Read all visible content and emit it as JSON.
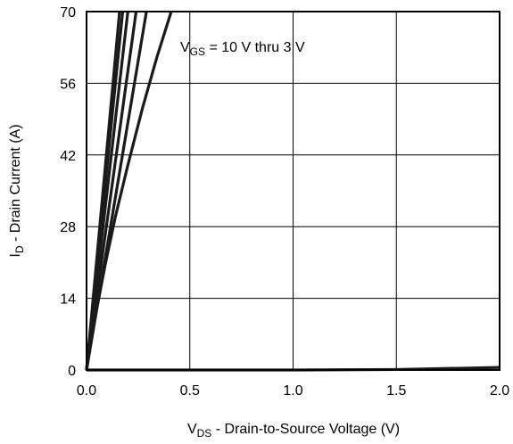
{
  "chart_data": {
    "type": "line",
    "title": "",
    "xlabel": {
      "main": "V",
      "sub": "DS",
      "rest": " - Drain-to-Source Voltage (V)"
    },
    "ylabel": {
      "main": "I",
      "sub": "D",
      "rest": " - Drain Current (A)"
    },
    "xlim": [
      0,
      2.0
    ],
    "ylim": [
      0,
      70
    ],
    "xticks": [
      0.0,
      0.5,
      1.0,
      1.5,
      2.0
    ],
    "xtick_labels": [
      "0.0",
      "0.5",
      "1.0",
      "1.5",
      "2.0"
    ],
    "yticks": [
      0,
      14,
      28,
      42,
      56,
      70
    ],
    "ytick_labels": [
      "0",
      "14",
      "28",
      "42",
      "56",
      "70"
    ],
    "grid": true,
    "annotation": {
      "main": "V",
      "sub": "GS",
      "rest": " = 10 V thru 3 V"
    },
    "line_color": "#1a1a1a",
    "series": [
      {
        "x": [
          0,
          0.16
        ],
        "y": [
          0,
          70
        ]
      },
      {
        "x": [
          0,
          0.175
        ],
        "y": [
          0,
          70
        ]
      },
      {
        "x": [
          0,
          0.2
        ],
        "y": [
          0,
          70
        ]
      },
      {
        "x": [
          0,
          0.24
        ],
        "y": [
          0,
          70
        ]
      },
      {
        "x": [
          0,
          0.29
        ],
        "y": [
          0,
          70
        ]
      },
      {
        "x": [
          0,
          0.02,
          0.05,
          0.09,
          0.14,
          0.2,
          0.27,
          0.34,
          0.41
        ],
        "y": [
          0,
          5,
          12,
          20.5,
          30,
          40,
          51,
          61,
          70
        ]
      },
      {
        "x": [
          0,
          0.5,
          1.0,
          1.5,
          2.0
        ],
        "y": [
          0,
          0,
          0,
          0.1,
          0.5
        ]
      }
    ]
  }
}
